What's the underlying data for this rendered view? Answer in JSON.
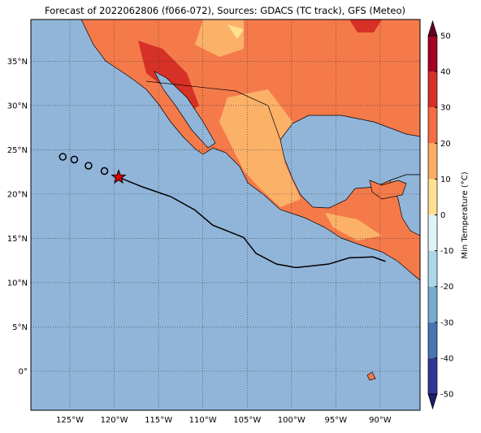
{
  "map": {
    "title": "Forecast of 2022062806 (f066-072), Sources: GDACS (TC track), GFS (Meteo)",
    "lon_range": [
      -129.4,
      -85.5
    ],
    "lat_range": [
      -4.4,
      39.7
    ],
    "lon_ticks": [
      {
        "value": -125,
        "label": "125°W"
      },
      {
        "value": -120,
        "label": "120°W"
      },
      {
        "value": -115,
        "label": "115°W"
      },
      {
        "value": -110,
        "label": "110°W"
      },
      {
        "value": -105,
        "label": "105°W"
      },
      {
        "value": -100,
        "label": "100°W"
      },
      {
        "value": -95,
        "label": "95°W"
      },
      {
        "value": -90,
        "label": "90°W"
      }
    ],
    "lat_ticks": [
      {
        "value": 35,
        "label": "35°N"
      },
      {
        "value": 30,
        "label": "30°N"
      },
      {
        "value": 25,
        "label": "25°N"
      },
      {
        "value": 20,
        "label": "20°N"
      },
      {
        "value": 15,
        "label": "15°N"
      },
      {
        "value": 10,
        "label": "10°N"
      },
      {
        "value": 5,
        "label": "5°N"
      },
      {
        "value": 0,
        "label": "0°"
      }
    ],
    "grid": true,
    "track": {
      "past": {
        "lon": [
          -125.8,
          -124.5,
          -122.9,
          -121.1
        ],
        "lat": [
          24.2,
          23.9,
          23.2,
          22.6
        ]
      },
      "current": {
        "lon": -119.5,
        "lat": 21.9,
        "color": "#e00000"
      },
      "forecast": {
        "lon": [
          -119.5,
          -116.8,
          -113.6,
          -110.9,
          -108.9,
          -105.4,
          -104.0,
          -101.7,
          -99.5,
          -95.8,
          -93.5,
          -90.8,
          -89.4
        ],
        "lat": [
          21.9,
          20.8,
          19.7,
          18.2,
          16.5,
          15.1,
          13.3,
          12.1,
          11.7,
          12.1,
          12.8,
          12.9,
          12.4
        ]
      }
    },
    "colorbar": {
      "label": "Min Temperature (°C)",
      "range": [
        -50,
        50
      ],
      "ticks": [
        -50,
        -40,
        -30,
        -20,
        -10,
        0,
        10,
        20,
        30,
        40,
        50
      ],
      "colors": [
        "#313695",
        "#4575b4",
        "#74add1",
        "#abd9e9",
        "#e0f3f8",
        "#fee090",
        "#fdae61",
        "#f46d43",
        "#d73027",
        "#a50026"
      ],
      "extend_colors": [
        "#1a1f66",
        "#67001f"
      ]
    }
  }
}
